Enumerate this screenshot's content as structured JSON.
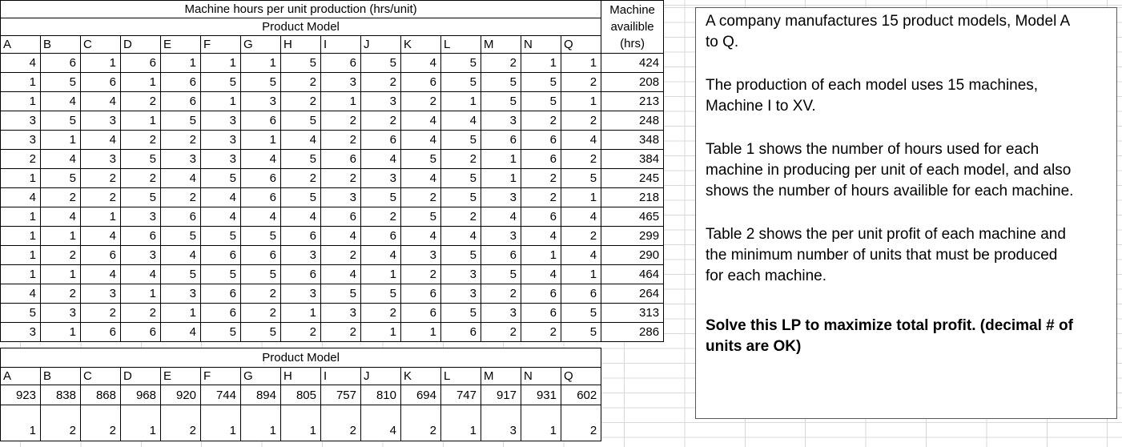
{
  "colors": {
    "grid_line": "#d8d8d8",
    "table_border": "#000000",
    "textbox_border": "#595959",
    "background": "#ffffff",
    "text": "#000000"
  },
  "table1": {
    "title": "Machine hours per unit production (hrs/unit)",
    "subtitle": "Product Model",
    "avail_header": [
      "Machine",
      "availible",
      "(hrs)"
    ],
    "columns": [
      "A",
      "B",
      "C",
      "D",
      "E",
      "F",
      "G",
      "H",
      "I",
      "J",
      "K",
      "L",
      "M",
      "N",
      "Q"
    ],
    "rows": [
      [
        4,
        6,
        1,
        6,
        1,
        1,
        1,
        5,
        6,
        5,
        4,
        5,
        2,
        1,
        1
      ],
      [
        1,
        5,
        6,
        1,
        6,
        5,
        5,
        2,
        3,
        2,
        6,
        5,
        5,
        5,
        2
      ],
      [
        1,
        4,
        4,
        2,
        6,
        1,
        3,
        2,
        1,
        3,
        2,
        1,
        5,
        5,
        1
      ],
      [
        3,
        5,
        3,
        1,
        5,
        3,
        6,
        5,
        2,
        2,
        4,
        4,
        3,
        2,
        2
      ],
      [
        3,
        1,
        4,
        2,
        2,
        3,
        1,
        4,
        2,
        6,
        4,
        5,
        6,
        6,
        4
      ],
      [
        2,
        4,
        3,
        5,
        3,
        3,
        4,
        5,
        6,
        4,
        5,
        2,
        1,
        6,
        2
      ],
      [
        1,
        5,
        2,
        2,
        4,
        5,
        6,
        2,
        2,
        3,
        4,
        5,
        1,
        2,
        5
      ],
      [
        4,
        2,
        2,
        5,
        2,
        4,
        6,
        5,
        3,
        5,
        2,
        5,
        3,
        2,
        1
      ],
      [
        1,
        4,
        1,
        3,
        6,
        4,
        4,
        4,
        6,
        2,
        5,
        2,
        4,
        6,
        4
      ],
      [
        1,
        1,
        4,
        6,
        5,
        5,
        5,
        6,
        4,
        6,
        4,
        4,
        3,
        4,
        2
      ],
      [
        1,
        2,
        6,
        3,
        4,
        6,
        6,
        3,
        2,
        4,
        3,
        5,
        6,
        1,
        4
      ],
      [
        1,
        1,
        4,
        4,
        5,
        5,
        5,
        6,
        4,
        1,
        2,
        3,
        5,
        4,
        1
      ],
      [
        4,
        2,
        3,
        1,
        3,
        6,
        2,
        3,
        5,
        5,
        6,
        3,
        2,
        6,
        6
      ],
      [
        5,
        3,
        2,
        2,
        1,
        6,
        2,
        1,
        3,
        2,
        6,
        5,
        3,
        6,
        5
      ],
      [
        3,
        1,
        6,
        6,
        4,
        5,
        5,
        2,
        2,
        1,
        1,
        6,
        2,
        2,
        5
      ]
    ],
    "avail": [
      424,
      208,
      213,
      248,
      348,
      384,
      245,
      218,
      465,
      299,
      290,
      464,
      264,
      313,
      286
    ]
  },
  "table2": {
    "subtitle": "Product Model",
    "columns": [
      "A",
      "B",
      "C",
      "D",
      "E",
      "F",
      "G",
      "H",
      "I",
      "J",
      "K",
      "L",
      "M",
      "N",
      "Q"
    ],
    "profit": [
      923,
      838,
      868,
      968,
      920,
      744,
      894,
      805,
      757,
      810,
      694,
      747,
      917,
      931,
      602
    ],
    "min_units": [
      1,
      2,
      2,
      1,
      2,
      1,
      1,
      1,
      2,
      4,
      2,
      1,
      3,
      1,
      2
    ]
  },
  "notes": {
    "paragraphs": [
      {
        "text": "A company manufactures 15 product models, Model A\nto Q.",
        "bold": false
      },
      {
        "text": "The production of each model uses 15 machines,\nMachine I to XV.",
        "bold": false
      },
      {
        "text": "Table 1 shows the number of hours used for each\nmachine in producing per unit of each model, and also\nshows the number of hours availible for each machine.",
        "bold": false
      },
      {
        "text": "Table 2 shows the per unit profit of each machine and\nthe minimum number of units that must be produced\nfor each machine.",
        "bold": false
      },
      {
        "text": "Solve this LP to maximize total profit. (decimal # of\nunits are OK)",
        "bold": true
      }
    ]
  }
}
